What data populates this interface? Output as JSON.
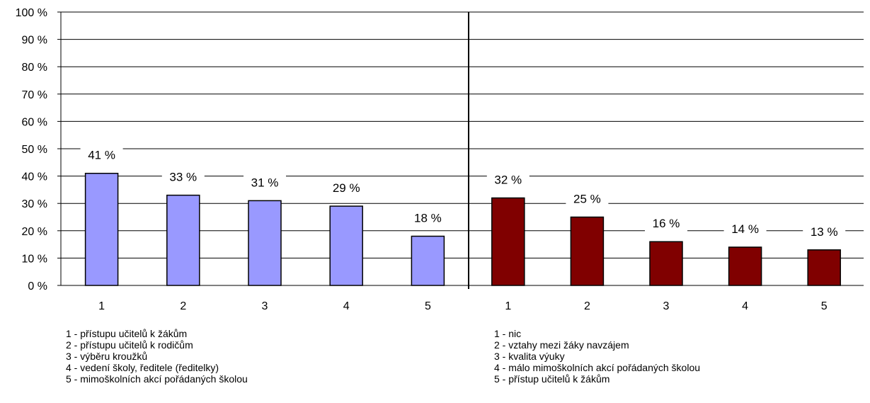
{
  "chart_data": {
    "type": "bar",
    "ylim": [
      0,
      100
    ],
    "yticks": [
      "0 %",
      "10 %",
      "20 %",
      "30 %",
      "40 %",
      "50 %",
      "60 %",
      "70 %",
      "80 %",
      "90 %",
      "100 %"
    ],
    "grid": true,
    "panels": [
      {
        "categories": [
          "1",
          "2",
          "3",
          "4",
          "5"
        ],
        "values": [
          41,
          33,
          31,
          29,
          18
        ],
        "labels": [
          "41 %",
          "33 %",
          "31 %",
          "29 %",
          "18 %"
        ],
        "color": "#9999ff"
      },
      {
        "categories": [
          "1",
          "2",
          "3",
          "4",
          "5"
        ],
        "values": [
          32,
          25,
          16,
          14,
          13
        ],
        "labels": [
          "32 %",
          "25 %",
          "16 %",
          "14 %",
          "13 %"
        ],
        "color": "#800000"
      }
    ]
  },
  "legend_left": [
    "1 - přístupu učitelů k žákům",
    "2 - přístupu učitelů k rodičům",
    "3 - výběru kroužků",
    "4 - vedení školy, ředitele (ředitelky)",
    "5 - mimoškolních akcí pořádaných školou"
  ],
  "legend_right": [
    "1 - nic",
    "2 - vztahy mezi žáky navzájem",
    "3 - kvalita výuky",
    "4 - málo mimoškolních akcí pořádaných školou",
    "5 - přístup učitelů k žákům"
  ]
}
